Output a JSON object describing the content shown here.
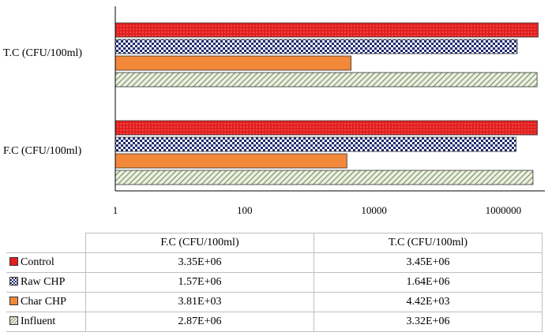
{
  "chart_data": {
    "type": "bar",
    "orientation": "horizontal",
    "x_scale": "log",
    "xlim": [
      1,
      3000000
    ],
    "xticks": [
      "1",
      "100",
      "10000",
      "1000000"
    ],
    "xtick_values": [
      1,
      100,
      10000,
      1000000
    ],
    "categories": [
      "T.C (CFU/100ml)",
      "F.C (CFU/100ml)"
    ],
    "series": [
      {
        "name": "Control",
        "color": "#e31f1f",
        "pattern": "dotted",
        "values": [
          3450000,
          3350000
        ]
      },
      {
        "name": "Raw CHP",
        "color": "#1f2b6e",
        "pattern": "checkerboard",
        "values": [
          1640000,
          1570000
        ]
      },
      {
        "name": "Char CHP",
        "color": "#f2883a",
        "pattern": "solid",
        "values": [
          4420,
          3810
        ]
      },
      {
        "name": "Influent",
        "color": "#8aa070",
        "pattern": "diagonal-stripes",
        "values": [
          3320000,
          2870000
        ]
      }
    ],
    "grid": false,
    "legend": "data-table"
  },
  "data_table": {
    "headers": [
      "F.C (CFU/100ml)",
      "T.C (CFU/100ml)"
    ],
    "rows": [
      {
        "label": "Control",
        "key": "k-control",
        "values": [
          "3.35E+06",
          "3.45E+06"
        ]
      },
      {
        "label": "Raw CHP",
        "key": "k-raw",
        "values": [
          "1.57E+06",
          "1.64E+06"
        ]
      },
      {
        "label": "Char CHP",
        "key": "k-char",
        "values": [
          "3.81E+03",
          "4.42E+03"
        ]
      },
      {
        "label": "Influent",
        "key": "k-influent",
        "values": [
          "2.87E+06",
          "3.32E+06"
        ]
      }
    ]
  }
}
